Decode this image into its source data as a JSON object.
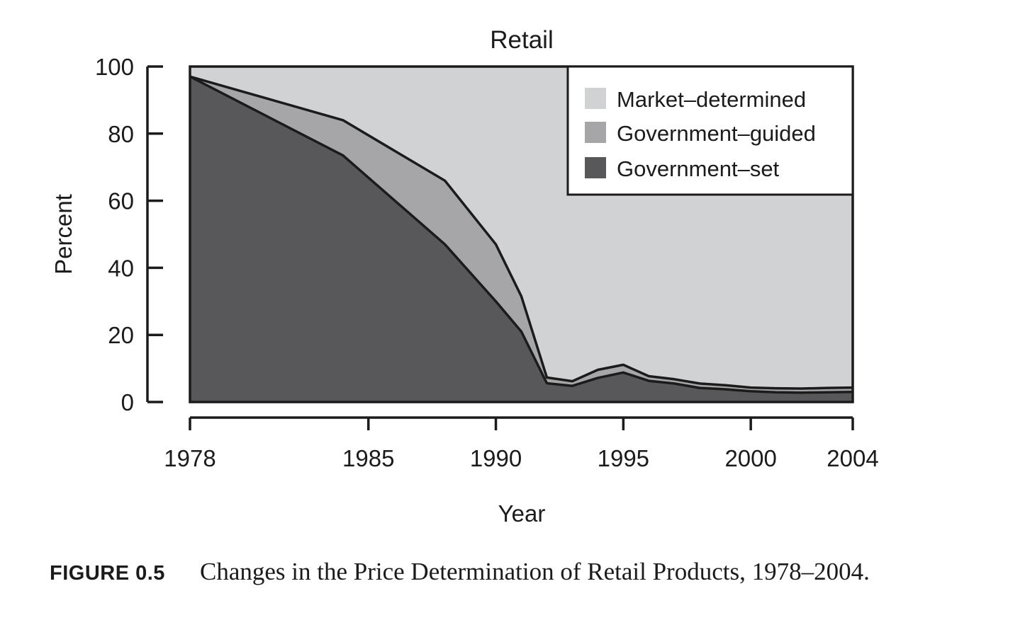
{
  "chart_data": {
    "type": "area",
    "stacked": true,
    "title": "Retail",
    "xlabel": "Year",
    "ylabel": "Percent",
    "xlim": [
      1978,
      2004
    ],
    "ylim": [
      0,
      100
    ],
    "x_ticks": [
      "1978",
      "1985",
      "1990",
      "1995",
      "2000",
      "2004"
    ],
    "x_tick_values": [
      1978,
      1985,
      1990,
      1995,
      2000,
      2004
    ],
    "y_ticks": [
      "0",
      "20",
      "40",
      "60",
      "80",
      "100"
    ],
    "y_tick_values": [
      0,
      20,
      40,
      60,
      80,
      100
    ],
    "grid": false,
    "legend_position": "top-right",
    "x": [
      1978,
      1984,
      1988,
      1990,
      1991,
      1992,
      1993,
      1994,
      1995,
      1996,
      1997,
      1998,
      1999,
      2000,
      2001,
      2002,
      2003,
      2004
    ],
    "series": [
      {
        "name": "Government–set",
        "color": "#58585a",
        "values": [
          97.0,
          73.5,
          47.0,
          30.0,
          21.0,
          5.6,
          4.8,
          7.2,
          8.8,
          6.3,
          5.5,
          4.2,
          3.8,
          3.2,
          2.9,
          2.8,
          2.9,
          3.0
        ]
      },
      {
        "name": "Government–guided",
        "color": "#a6a6a8",
        "values": [
          0.0,
          10.5,
          19.0,
          17.0,
          10.5,
          1.7,
          1.4,
          2.4,
          2.3,
          1.4,
          1.3,
          1.3,
          1.2,
          1.1,
          1.2,
          1.2,
          1.3,
          1.3
        ]
      },
      {
        "name": "Market–determined",
        "color": "#d1d2d4",
        "values": [
          3.0,
          16.0,
          34.0,
          53.0,
          68.5,
          92.7,
          93.8,
          90.4,
          88.9,
          92.3,
          93.2,
          94.5,
          95.0,
          95.7,
          95.9,
          96.0,
          95.8,
          95.7
        ]
      }
    ],
    "legend": [
      "Market–determined",
      "Government–guided",
      "Government–set"
    ]
  },
  "caption": {
    "label": "FIGURE 0.5",
    "text": "Changes in the Price Determination of Retail Products, 1978–2004."
  }
}
